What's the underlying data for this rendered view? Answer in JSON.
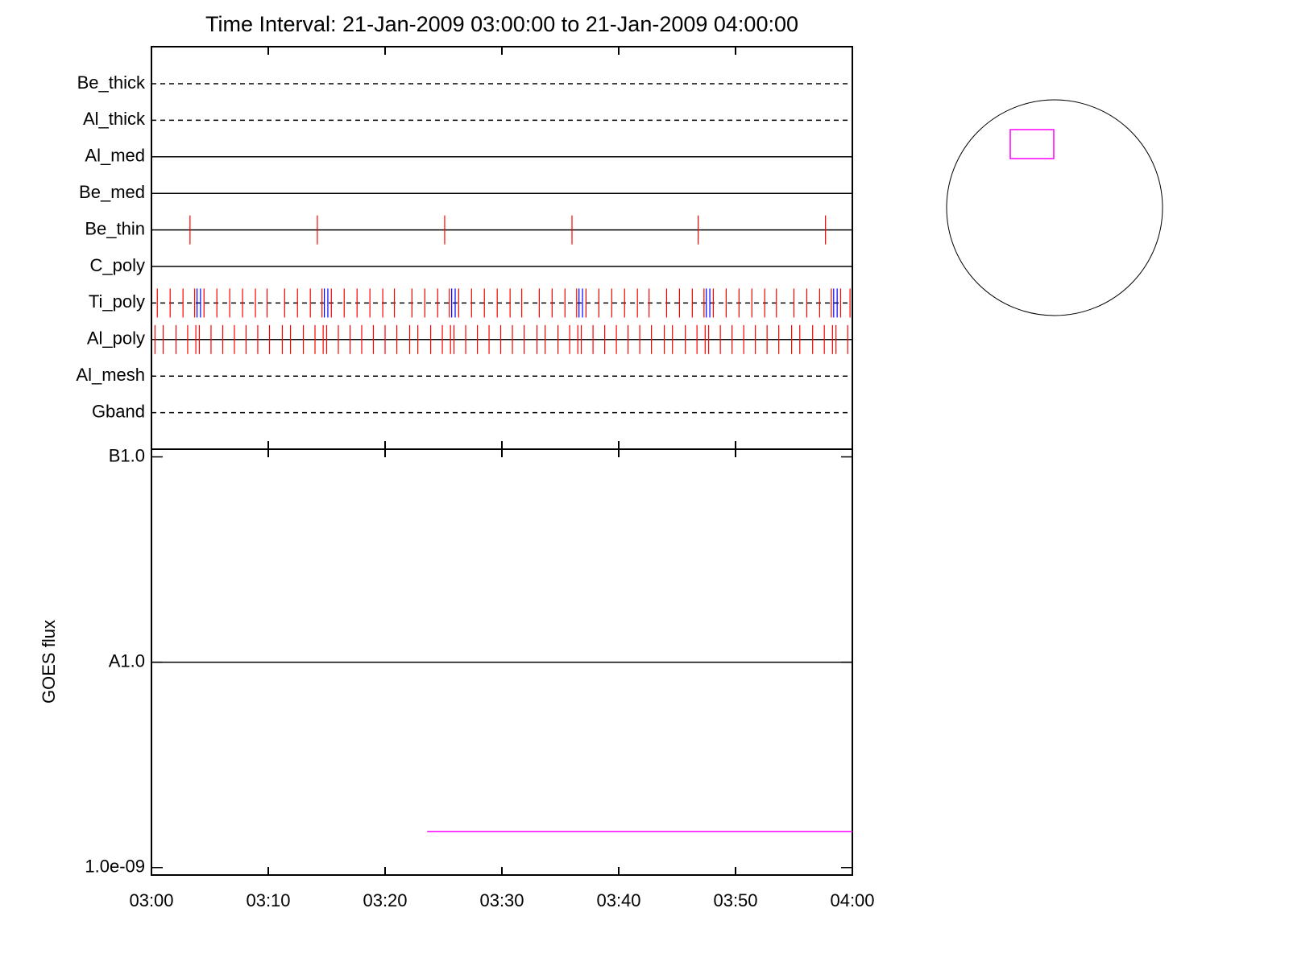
{
  "chart_data": [
    {
      "type": "timeline",
      "title": "Time Interval: 21-Jan-2009 03:00:00 to 21-Jan-2009 04:00:00",
      "xlim": [
        0,
        60
      ],
      "xticks": [
        0,
        10,
        20,
        30,
        40,
        50,
        60
      ],
      "rows": [
        {
          "name": "Be_thick",
          "line": "dashed",
          "events": []
        },
        {
          "name": "Al_thick",
          "line": "dashed",
          "events": []
        },
        {
          "name": "Al_med",
          "line": "solid",
          "events": []
        },
        {
          "name": "Be_med",
          "line": "solid",
          "events": []
        },
        {
          "name": "Be_thin",
          "line": "solid",
          "events": [
            {
              "color": "#ff0000",
              "x": [
                3.3,
                14.2,
                25.1,
                36.0,
                46.8,
                57.7
              ]
            }
          ]
        },
        {
          "name": "C_poly",
          "line": "solid",
          "events": []
        },
        {
          "name": "Ti_poly",
          "line": "dashed",
          "events": [
            {
              "color": "#ff0000",
              "x": [
                0.5,
                1.6,
                2.7,
                3.7,
                4.5,
                5.6,
                6.7,
                7.8,
                8.9,
                9.9,
                11.4,
                12.5,
                13.6,
                14.6,
                15.4,
                16.5,
                17.6,
                18.7,
                19.8,
                20.8,
                22.3,
                23.4,
                24.5,
                25.5,
                26.3,
                27.4,
                28.5,
                29.6,
                30.7,
                31.7,
                33.2,
                34.3,
                35.4,
                36.4,
                37.2,
                38.3,
                39.4,
                40.5,
                41.6,
                42.6,
                44.1,
                45.2,
                46.3,
                47.3,
                48.1,
                49.2,
                50.3,
                51.4,
                52.5,
                53.5,
                55.0,
                56.1,
                57.2,
                58.2,
                59.0,
                59.8
              ]
            },
            {
              "color": "#0000ff",
              "x": [
                3.9,
                4.2,
                14.8,
                15.1,
                25.7,
                26.0,
                36.6,
                36.9,
                47.5,
                47.8,
                58.4,
                58.7
              ]
            }
          ]
        },
        {
          "name": "Al_poly",
          "line": "solid",
          "events": [
            {
              "color": "#ff0000",
              "x": [
                0.3,
                1.0,
                2.1,
                3.1,
                3.8,
                4.1,
                5.1,
                6.1,
                7.1,
                8.1,
                9.1,
                10.1,
                11.2,
                11.9,
                13.0,
                14.0,
                14.7,
                15.0,
                16.0,
                17.0,
                18.0,
                19.0,
                20.0,
                21.0,
                22.1,
                22.8,
                23.9,
                24.9,
                25.6,
                25.9,
                26.9,
                27.9,
                28.9,
                29.9,
                30.9,
                31.9,
                33.0,
                33.7,
                34.8,
                35.8,
                36.5,
                36.8,
                37.8,
                38.8,
                39.8,
                40.8,
                41.8,
                42.8,
                43.9,
                44.6,
                45.7,
                46.7,
                47.4,
                47.7,
                48.7,
                49.7,
                50.7,
                51.7,
                52.7,
                53.7,
                54.8,
                55.5,
                56.6,
                57.6,
                58.3,
                58.6,
                59.6
              ]
            }
          ]
        },
        {
          "name": "Al_mesh",
          "line": "dashed",
          "events": []
        },
        {
          "name": "Gband",
          "line": "dashed",
          "events": []
        }
      ]
    },
    {
      "type": "line",
      "ylabel": "GOES flux",
      "log_y": true,
      "xlim": [
        0,
        60
      ],
      "xticks": [
        {
          "value": 0,
          "label": "03:00"
        },
        {
          "value": 10,
          "label": "03:10"
        },
        {
          "value": 20,
          "label": "03:20"
        },
        {
          "value": 30,
          "label": "03:30"
        },
        {
          "value": 40,
          "label": "03:40"
        },
        {
          "value": 50,
          "label": "03:50"
        },
        {
          "value": 60,
          "label": "04:00"
        }
      ],
      "ylim": [
        9.2e-10,
        1.09e-07
      ],
      "yticks": [
        {
          "value": 1e-09,
          "label": "1.0e-09"
        },
        {
          "value": 1e-08,
          "label": "A1.0"
        },
        {
          "value": 1e-07,
          "label": "B1.0"
        }
      ],
      "series": [
        {
          "color": "#000000",
          "x": [
            0,
            60
          ],
          "values": [
            1e-08,
            1e-08
          ]
        },
        {
          "color": "#ff00ff",
          "x": [
            23.6,
            60
          ],
          "values": [
            1.5e-09,
            1.5e-09
          ]
        }
      ]
    }
  ]
}
